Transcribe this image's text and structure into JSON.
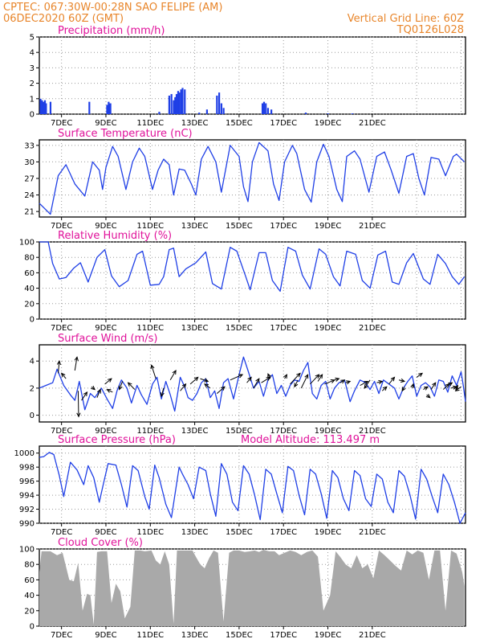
{
  "header": {
    "agency_line": "CPTEC:   067:30W-00:28N  SAO FELIPE (AM)",
    "date_line": "06DEC2020 60Z (GMT)",
    "grid_line": "Vertical Grid Line: 60Z",
    "code": "TQ0126L028"
  },
  "colors": {
    "header_orange": "#e8852a",
    "title_magenta": "#e0119a",
    "series_blue": "#1f3fe6",
    "cloud_gray": "#a9a9a9",
    "arrow_black": "#000000"
  },
  "chart_data": [
    {
      "type": "bar",
      "title": "Precipitation (mm/h)",
      "x_tick_labels": [
        "7DEC",
        "9DEC",
        "11DEC",
        "13DEC",
        "15DEC",
        "17DEC",
        "19DEC",
        "21DEC"
      ],
      "y_ticks": [
        "0",
        "1",
        "2",
        "3",
        "4",
        "5"
      ],
      "ylim": [
        0,
        5
      ],
      "grid": true,
      "x_unit": "day (x=0 at 6DEC 00Z)",
      "bars": [
        [
          0.05,
          1.0
        ],
        [
          0.12,
          0.9
        ],
        [
          0.18,
          0.8
        ],
        [
          0.25,
          0.9
        ],
        [
          0.3,
          0.7
        ],
        [
          0.5,
          0.8
        ],
        [
          2.25,
          0.8
        ],
        [
          3.05,
          0.6
        ],
        [
          3.12,
          0.8
        ],
        [
          3.2,
          0.7
        ],
        [
          5.4,
          0.15
        ],
        [
          5.85,
          1.2
        ],
        [
          5.95,
          1.3
        ],
        [
          6.05,
          0.9
        ],
        [
          6.12,
          1.1
        ],
        [
          6.18,
          1.3
        ],
        [
          6.25,
          1.5
        ],
        [
          6.3,
          1.4
        ],
        [
          6.38,
          1.6
        ],
        [
          6.45,
          1.7
        ],
        [
          6.55,
          1.6
        ],
        [
          7.2,
          0.1
        ],
        [
          7.55,
          0.3
        ],
        [
          8.0,
          1.2
        ],
        [
          8.1,
          1.4
        ],
        [
          8.2,
          0.7
        ],
        [
          8.3,
          0.4
        ],
        [
          10.05,
          0.7
        ],
        [
          10.12,
          0.8
        ],
        [
          10.2,
          0.7
        ],
        [
          10.3,
          0.4
        ],
        [
          10.45,
          0.3
        ],
        [
          12.0,
          0.1
        ],
        [
          13.0,
          0.05
        ],
        [
          14.1,
          0.05
        ]
      ]
    },
    {
      "type": "line",
      "title": "Surface Temperature (nC)",
      "x_tick_labels": [
        "7DEC",
        "9DEC",
        "11DEC",
        "13DEC",
        "15DEC",
        "17DEC",
        "19DEC",
        "21DEC"
      ],
      "y_ticks": [
        "21",
        "24",
        "27",
        "30",
        "33"
      ],
      "ylim": [
        20,
        34
      ],
      "grid": true,
      "x": [
        0,
        0.5,
        0.85,
        1.2,
        1.6,
        2.05,
        2.4,
        2.7,
        2.85,
        3.0,
        3.3,
        3.55,
        3.9,
        4.2,
        4.5,
        4.75,
        5.1,
        5.35,
        5.6,
        5.85,
        6.05,
        6.3,
        6.55,
        6.85,
        7.05,
        7.3,
        7.6,
        7.95,
        8.2,
        8.6,
        9.0,
        9.2,
        9.4,
        9.6,
        9.9,
        10.3,
        10.55,
        10.8,
        11.05,
        11.4,
        11.6,
        11.95,
        12.25,
        12.5,
        12.8,
        13.05,
        13.4,
        13.65,
        13.85,
        14.2,
        14.45,
        14.85,
        15.2,
        15.55,
        15.85,
        16.2,
        16.55,
        16.85,
        17.1,
        17.35,
        17.65,
        18.0,
        18.3,
        18.65,
        18.8,
        19.15
      ],
      "y": [
        22.5,
        20.5,
        27.5,
        29.5,
        26.0,
        23.8,
        30.0,
        28.5,
        25.0,
        29.0,
        32.8,
        31.0,
        25.0,
        30.0,
        32.5,
        31.0,
        25.0,
        28.5,
        30.5,
        29.5,
        24.0,
        28.7,
        28.5,
        26.0,
        24.0,
        30.5,
        32.8,
        30.0,
        24.5,
        33.0,
        31.0,
        25.5,
        22.8,
        30.0,
        33.5,
        32.0,
        26.0,
        23.0,
        30.0,
        33.0,
        31.5,
        25.0,
        22.7,
        30.0,
        33.2,
        31.0,
        25.0,
        22.8,
        31.0,
        32.0,
        30.5,
        24.5,
        31.0,
        31.8,
        28.5,
        24.3,
        31.0,
        31.5,
        27.0,
        24.0,
        30.8,
        30.5,
        27.5,
        31.0,
        31.4,
        30.0
      ]
    },
    {
      "type": "line",
      "title": "Relative Humidity (%)",
      "x_tick_labels": [
        "7DEC",
        "9DEC",
        "11DEC",
        "13DEC",
        "15DEC",
        "17DEC",
        "19DEC",
        "21DEC"
      ],
      "y_ticks": [
        "0",
        "20",
        "40",
        "60",
        "80",
        "100"
      ],
      "ylim": [
        0,
        100
      ],
      "grid": true,
      "x": [
        0,
        0.4,
        0.6,
        0.9,
        1.2,
        1.55,
        1.85,
        2.2,
        2.6,
        2.95,
        3.25,
        3.6,
        4.0,
        4.4,
        4.65,
        5.0,
        5.4,
        5.6,
        5.85,
        6.05,
        6.3,
        6.6,
        7.05,
        7.5,
        7.8,
        8.2,
        8.6,
        8.9,
        9.3,
        9.5,
        9.9,
        10.2,
        10.5,
        10.85,
        11.2,
        11.55,
        11.85,
        12.2,
        12.6,
        12.9,
        13.25,
        13.55,
        13.85,
        14.25,
        14.55,
        14.9,
        15.25,
        15.6,
        15.9,
        16.2,
        16.55,
        16.85,
        17.3,
        17.6,
        17.95,
        18.3,
        18.6,
        18.9,
        19.15
      ],
      "y": [
        100,
        100,
        72,
        52,
        54,
        66,
        73,
        48,
        80,
        90,
        56,
        42,
        50,
        84,
        88,
        44,
        45,
        55,
        90,
        92,
        55,
        65,
        73,
        87,
        46,
        39,
        93,
        88,
        55,
        38,
        86,
        86,
        50,
        36,
        93,
        88,
        57,
        39,
        91,
        84,
        55,
        43,
        88,
        84,
        50,
        40,
        83,
        88,
        48,
        45,
        73,
        85,
        52,
        45,
        84,
        72,
        55,
        45,
        55
      ]
    },
    {
      "type": "line",
      "title": "Surface Wind (m/s)",
      "x_tick_labels": [
        "7DEC",
        "9DEC",
        "11DEC",
        "13DEC",
        "15DEC",
        "17DEC",
        "19DEC",
        "21DEC"
      ],
      "y_ticks": [
        "0",
        "2",
        "4"
      ],
      "ylim": [
        -0.5,
        5.2
      ],
      "grid": true,
      "x": [
        0,
        0.3,
        0.6,
        0.8,
        1.1,
        1.4,
        1.6,
        1.8,
        2.05,
        2.3,
        2.5,
        2.8,
        3.05,
        3.3,
        3.5,
        3.7,
        3.95,
        4.15,
        4.4,
        4.6,
        4.85,
        5.1,
        5.3,
        5.5,
        5.7,
        5.9,
        6.1,
        6.35,
        6.55,
        6.7,
        6.9,
        7.1,
        7.3,
        7.5,
        7.7,
        7.9,
        8.1,
        8.3,
        8.5,
        8.75,
        9.0,
        9.2,
        9.4,
        9.65,
        9.9,
        10.1,
        10.3,
        10.5,
        10.7,
        10.9,
        11.1,
        11.3,
        11.5,
        11.7,
        11.9,
        12.1,
        12.3,
        12.5,
        12.7,
        12.9,
        13.1,
        13.3,
        13.5,
        13.75,
        14.0,
        14.2,
        14.45,
        14.7,
        14.9,
        15.1,
        15.3,
        15.5,
        15.75,
        16.0,
        16.2,
        16.4,
        16.6,
        16.8,
        17.0,
        17.2,
        17.4,
        17.6,
        17.8,
        18.0,
        18.2,
        18.4,
        18.6,
        18.8,
        19.0,
        19.1,
        19.2
      ],
      "y": [
        2.0,
        2.2,
        2.4,
        3.4,
        2.2,
        1.5,
        1.1,
        2.5,
        0.4,
        1.6,
        1.3,
        2.0,
        1.2,
        0.5,
        1.8,
        2.6,
        2.0,
        0.9,
        2.2,
        1.5,
        0.8,
        2.3,
        2.8,
        1.2,
        2.5,
        1.5,
        0.3,
        2.8,
        2.1,
        1.3,
        1.1,
        1.6,
        2.4,
        2.7,
        1.3,
        1.8,
        0.5,
        2.4,
        2.7,
        1.2,
        3.0,
        4.3,
        3.3,
        2.0,
        2.5,
        1.4,
        2.6,
        3.0,
        1.6,
        2.2,
        1.4,
        2.2,
        2.6,
        2.5,
        3.3,
        3.9,
        1.6,
        1.2,
        2.2,
        2.5,
        1.2,
        2.0,
        2.4,
        2.6,
        1.0,
        1.8,
        2.6,
        2.4,
        1.9,
        2.5,
        1.6,
        2.6,
        2.3,
        2.0,
        1.2,
        2.0,
        2.5,
        2.9,
        1.4,
        2.2,
        2.4,
        2.1,
        1.4,
        2.6,
        2.5,
        1.7,
        2.9,
        2.2,
        3.2,
        2.2,
        1.0
      ],
      "arrows": [
        [
          0.85,
          3.1,
          0.05,
          0.9
        ],
        [
          1.2,
          2.7,
          -0.2,
          0.4
        ],
        [
          1.6,
          3.3,
          0.1,
          1.0
        ],
        [
          1.75,
          1.8,
          0.02,
          -1.9
        ],
        [
          1.9,
          1.1,
          0.25,
          0.6
        ],
        [
          2.35,
          2.1,
          0.15,
          -0.2
        ],
        [
          2.6,
          1.3,
          0.15,
          0.6
        ],
        [
          2.95,
          2.3,
          0.3,
          0.4
        ],
        [
          3.3,
          1.7,
          -0.25,
          0.2
        ],
        [
          3.75,
          2.5,
          -0.15,
          -0.6
        ],
        [
          4.3,
          1.9,
          -0.3,
          0.5
        ],
        [
          5.25,
          2.7,
          -0.2,
          1.0
        ],
        [
          5.6,
          2.0,
          -0.1,
          -0.6
        ],
        [
          5.9,
          2.6,
          0.25,
          0.7
        ],
        [
          6.35,
          1.8,
          0.25,
          0.5
        ],
        [
          6.8,
          2.3,
          0.35,
          0.5
        ],
        [
          7.25,
          2.7,
          0.35,
          -0.2
        ],
        [
          7.7,
          2.0,
          -0.25,
          0.3
        ],
        [
          8.0,
          1.6,
          0.35,
          0.5
        ],
        [
          8.6,
          2.6,
          0.55,
          0.4
        ],
        [
          9.35,
          2.4,
          0.2,
          0.4
        ],
        [
          9.65,
          2.0,
          0.25,
          0.7
        ],
        [
          10.0,
          2.4,
          0.4,
          0.4
        ],
        [
          10.4,
          2.7,
          -0.1,
          0.35
        ],
        [
          11.05,
          2.7,
          0.1,
          0.3
        ],
        [
          11.3,
          2.3,
          0.45,
          0.8
        ],
        [
          11.65,
          2.6,
          -0.15,
          -0.5
        ],
        [
          11.8,
          2.0,
          0.3,
          1.0
        ],
        [
          12.2,
          2.3,
          0.4,
          0.7
        ],
        [
          12.55,
          2.5,
          0.2,
          0.5
        ],
        [
          12.85,
          2.3,
          0.45,
          0.3
        ],
        [
          13.3,
          2.6,
          0.2,
          0.1
        ],
        [
          13.55,
          2.4,
          0.2,
          0.2
        ],
        [
          13.8,
          2.4,
          0.2,
          0.1
        ],
        [
          14.45,
          2.2,
          0.35,
          0.3
        ],
        [
          14.9,
          2.6,
          -0.25,
          -0.6
        ],
        [
          15.2,
          2.4,
          0.25,
          0.1
        ],
        [
          15.45,
          1.8,
          0.2,
          0.3
        ],
        [
          15.75,
          2.3,
          0.25,
          0.5
        ],
        [
          16.2,
          2.6,
          0.25,
          -0.1
        ],
        [
          16.45,
          2.1,
          -0.1,
          -0.3
        ],
        [
          16.8,
          2.0,
          0.05,
          0.3
        ],
        [
          17.0,
          2.8,
          0.25,
          0.3
        ],
        [
          17.3,
          1.9,
          0.2,
          0.2
        ],
        [
          17.45,
          1.5,
          0.15,
          -0.2
        ],
        [
          17.65,
          1.9,
          0.2,
          0.5
        ],
        [
          18.2,
          1.9,
          0.25,
          0.4
        ],
        [
          18.4,
          2.2,
          0.2,
          0.2
        ],
        [
          18.55,
          2.0,
          0.25,
          0.1
        ],
        [
          18.75,
          1.9,
          0.1,
          0.3
        ],
        [
          19.0,
          2.1,
          -0.25,
          -0.3
        ]
      ]
    },
    {
      "type": "line",
      "title": "Surface Pressure (hPa)",
      "annotation": "Model Altitude: 113.497 m",
      "x_tick_labels": [
        "7DEC",
        "9DEC",
        "11DEC",
        "13DEC",
        "15DEC",
        "17DEC",
        "19DEC",
        "21DEC"
      ],
      "y_ticks": [
        "990",
        "992",
        "994",
        "996",
        "998",
        "1000"
      ],
      "ylim": [
        990,
        1001
      ],
      "grid": true,
      "x": [
        0,
        0.2,
        0.45,
        0.65,
        0.9,
        1.1,
        1.4,
        1.7,
        2.0,
        2.2,
        2.45,
        2.7,
        2.9,
        3.1,
        3.45,
        3.7,
        3.95,
        4.2,
        4.45,
        4.75,
        4.95,
        5.2,
        5.4,
        5.7,
        5.95,
        6.3,
        6.45,
        6.7,
        6.95,
        7.2,
        7.5,
        7.7,
        7.95,
        8.2,
        8.45,
        8.7,
        8.95,
        9.2,
        9.45,
        9.7,
        9.95,
        10.2,
        10.45,
        10.7,
        10.95,
        11.2,
        11.45,
        11.7,
        11.95,
        12.2,
        12.45,
        12.7,
        12.95,
        13.2,
        13.45,
        13.7,
        13.95,
        14.2,
        14.45,
        14.7,
        14.95,
        15.2,
        15.45,
        15.7,
        15.95,
        16.2,
        16.45,
        16.7,
        16.95,
        17.2,
        17.45,
        17.7,
        17.95,
        18.2,
        18.45,
        18.7,
        18.95,
        19.2
      ],
      "y": [
        999.4,
        999.5,
        1000.1,
        999.8,
        996.8,
        993.8,
        998.7,
        997.6,
        995.5,
        998.2,
        996.5,
        993.0,
        995.8,
        998.5,
        998.3,
        995.5,
        992.3,
        998.2,
        997.5,
        993.8,
        992.0,
        998.3,
        996.5,
        992.7,
        990.8,
        998.0,
        997.0,
        995.5,
        993.5,
        998.0,
        997.5,
        994.2,
        991.0,
        998.5,
        997.0,
        993.0,
        991.8,
        998.2,
        997.0,
        994.0,
        990.5,
        997.7,
        997.0,
        994.2,
        991.5,
        998.1,
        997.5,
        994.0,
        991.2,
        997.7,
        997.0,
        994.2,
        990.7,
        997.5,
        996.5,
        993.5,
        991.8,
        997.5,
        996.8,
        993.5,
        992.4,
        997.0,
        996.3,
        993.0,
        991.5,
        997.5,
        996.7,
        994.0,
        990.6,
        997.7,
        996.3,
        993.8,
        991.5,
        997.0,
        995.5,
        993.0,
        990.0,
        991.5
      ]
    },
    {
      "type": "area",
      "title": "Cloud Cover (%)",
      "x_tick_labels": [
        "7DEC",
        "9DEC",
        "11DEC",
        "13DEC",
        "15DEC",
        "17DEC",
        "19DEC",
        "21DEC"
      ],
      "y_ticks": [
        "0",
        "20",
        "40",
        "60",
        "80",
        "100"
      ],
      "ylim": [
        0,
        100
      ],
      "grid": true,
      "x": [
        0,
        0.1,
        0.5,
        0.8,
        1.05,
        1.35,
        1.55,
        1.75,
        1.95,
        2.15,
        2.3,
        2.45,
        2.6,
        2.8,
        3.05,
        3.25,
        3.45,
        3.65,
        3.85,
        4.1,
        4.3,
        4.55,
        4.75,
        5.05,
        5.25,
        5.45,
        5.65,
        5.85,
        6.05,
        6.2,
        6.4,
        6.6,
        6.9,
        7.05,
        7.25,
        7.45,
        7.65,
        7.85,
        8.05,
        8.3,
        8.55,
        8.75,
        9.0,
        9.25,
        9.5,
        9.7,
        9.9,
        10.1,
        10.35,
        10.6,
        10.8,
        11.05,
        11.3,
        11.55,
        11.8,
        12.05,
        12.3,
        12.55,
        12.8,
        13.1,
        13.35,
        13.55,
        13.8,
        14.05,
        14.3,
        14.55,
        14.8,
        15.05,
        15.3,
        15.55,
        15.8,
        16.05,
        16.3,
        16.55,
        16.8,
        17.05,
        17.3,
        17.55,
        17.8,
        18.05,
        18.3,
        18.55,
        18.8,
        19.05,
        19.15
      ],
      "y": [
        70,
        97,
        97,
        92,
        95,
        60,
        58,
        82,
        20,
        42,
        40,
        2,
        96,
        97,
        97,
        30,
        55,
        45,
        10,
        25,
        98,
        98,
        97,
        98,
        85,
        80,
        97,
        80,
        3,
        98,
        98,
        98,
        98,
        90,
        80,
        75,
        88,
        98,
        95,
        6,
        95,
        98,
        98,
        96,
        97,
        98,
        96,
        99,
        97,
        97,
        92,
        95,
        98,
        96,
        92,
        96,
        98,
        90,
        20,
        40,
        97,
        90,
        80,
        75,
        92,
        75,
        80,
        62,
        98,
        92,
        85,
        78,
        72,
        98,
        93,
        98,
        95,
        60,
        98,
        98,
        20,
        98,
        94,
        70,
        52
      ]
    }
  ]
}
